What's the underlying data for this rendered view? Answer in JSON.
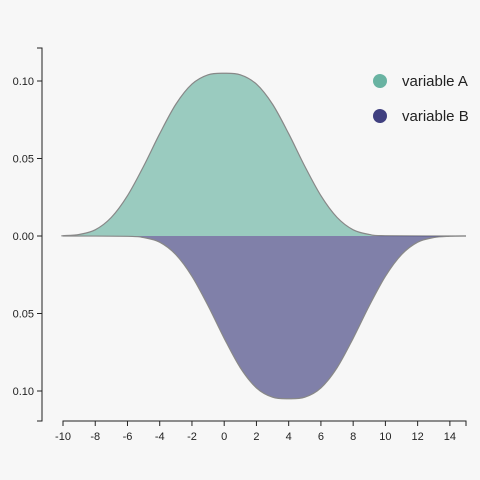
{
  "chart_data": {
    "type": "area",
    "subtype": "mirrored density",
    "x_ticks": [
      "-10",
      "-8",
      "-6",
      "-4",
      "-2",
      "0",
      "2",
      "4",
      "6",
      "8",
      "10",
      "12",
      "14"
    ],
    "y_ticks": [
      "0.10",
      "0.05",
      "0.00",
      "0.05",
      "0.10"
    ],
    "xlim": [
      -10,
      15
    ],
    "ylim": [
      -0.105,
      0.105
    ],
    "grid": false,
    "legend_position": "top-right",
    "series": [
      {
        "name": "variable A",
        "color": "#69b3a2",
        "direction": "up",
        "x": [
          -10,
          -9,
          -8,
          -7,
          -6,
          -5,
          -4,
          -3,
          -2,
          -1,
          0,
          1,
          2,
          3,
          4,
          5,
          6,
          7,
          8,
          9,
          10
        ],
        "values": [
          0.0002,
          0.001,
          0.004,
          0.012,
          0.026,
          0.045,
          0.066,
          0.085,
          0.098,
          0.104,
          0.105,
          0.104,
          0.098,
          0.085,
          0.066,
          0.045,
          0.026,
          0.012,
          0.004,
          0.001,
          0.0002
        ]
      },
      {
        "name": "variable B",
        "color": "#404080",
        "direction": "down",
        "x": [
          -6,
          -5,
          -4,
          -3,
          -2,
          -1,
          0,
          1,
          2,
          3,
          4,
          5,
          6,
          7,
          8,
          9,
          10,
          11,
          12,
          13,
          14
        ],
        "values": [
          0.0002,
          0.001,
          0.004,
          0.012,
          0.026,
          0.045,
          0.066,
          0.085,
          0.098,
          0.104,
          0.105,
          0.104,
          0.098,
          0.085,
          0.066,
          0.045,
          0.026,
          0.012,
          0.004,
          0.001,
          0.0002
        ]
      }
    ]
  }
}
